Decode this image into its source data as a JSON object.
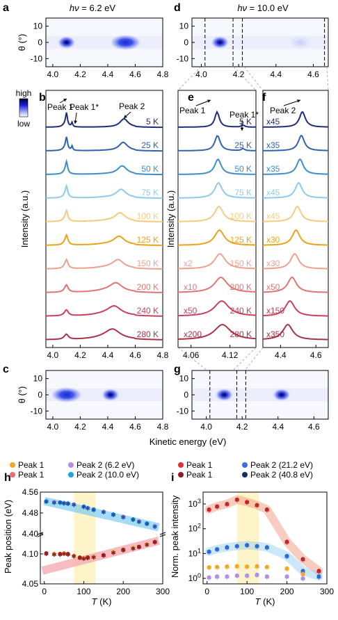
{
  "chart_data": [
    {
      "panel": "a",
      "type": "heatmap",
      "title": "hν = 6.2 eV",
      "ylabel": "θ (°)",
      "x_ticks": [
        "4.0",
        "4.2",
        "4.4",
        "4.6",
        "4.8"
      ],
      "y_ticks": [
        "10",
        "0",
        "-10"
      ],
      "xlim": [
        3.95,
        4.8
      ],
      "ylim": [
        -15,
        15
      ],
      "blobs": [
        {
          "x": 4.1,
          "y": 0,
          "strength": 0.9
        },
        {
          "x": 4.53,
          "y": 0,
          "strength": 0.35
        }
      ]
    },
    {
      "panel": "d",
      "type": "heatmap",
      "title": "hν = 10.0 eV",
      "x_ticks": [
        "4.0",
        "4.2",
        "4.4",
        "4.6"
      ],
      "y_ticks": [
        "10",
        "0",
        "-10"
      ],
      "xlim": [
        3.95,
        4.68
      ],
      "ylim": [
        -15,
        15
      ],
      "blobs": [
        {
          "x": 4.1,
          "y": 0,
          "strength": 1.0
        },
        {
          "x": 4.53,
          "y": 0,
          "strength": 0.05
        }
      ],
      "dashed_x": [
        4.02,
        4.17,
        4.22,
        4.66
      ]
    },
    {
      "panel": "b",
      "type": "line",
      "xlabel": "Kinetic energy (eV)",
      "ylabel": "Intensity (a.u.)",
      "x_ticks": [
        "4.0",
        "4.2",
        "4.4",
        "4.6",
        "4.8"
      ],
      "xlim": [
        3.95,
        4.8
      ],
      "legend": {
        "high": "high",
        "low": "low"
      },
      "annotations": [
        "Peak 1",
        "Peak 1*",
        "Peak 2"
      ],
      "series": [
        {
          "name": "5 K",
          "color": "#1d2d7a"
        },
        {
          "name": "25 K",
          "color": "#2f62ad"
        },
        {
          "name": "50 K",
          "color": "#3d8ccc"
        },
        {
          "name": "75 K",
          "color": "#8ccbec"
        },
        {
          "name": "100 K",
          "color": "#f2cc7b"
        },
        {
          "name": "125 K",
          "color": "#eaa318"
        },
        {
          "name": "150 K",
          "color": "#eba191"
        },
        {
          "name": "200 K",
          "color": "#e27470"
        },
        {
          "name": "240 K",
          "color": "#c6405a"
        },
        {
          "name": "280 K",
          "color": "#a83246"
        }
      ]
    },
    {
      "panel": "e",
      "type": "line",
      "x_ticks": [
        "4.06",
        "4.12"
      ],
      "xlim": [
        4.04,
        4.16
      ],
      "annotations": [
        "Peak 1",
        "Peak 1*"
      ],
      "scale_labels": [
        "",
        "",
        "",
        "",
        "",
        "",
        "x2",
        "x10",
        "x50",
        "x200"
      ]
    },
    {
      "panel": "f",
      "type": "line",
      "x_ticks": [
        "4.4",
        "4.6"
      ],
      "xlim": [
        4.3,
        4.67
      ],
      "annotations": [
        "Peak 2"
      ],
      "scale_labels": [
        "x45",
        "x35",
        "x35",
        "x45",
        "x45",
        "x30",
        "x30",
        "x50",
        "x150",
        "x350"
      ]
    },
    {
      "panel": "c",
      "type": "heatmap",
      "ylabel": "θ (°)",
      "x_ticks": [
        "4.0",
        "4.2",
        "4.4",
        "4.6",
        "4.8"
      ],
      "y_ticks": [
        "10",
        "0",
        "-10"
      ],
      "xlim": [
        3.95,
        4.8
      ],
      "ylim": [
        -15,
        15
      ],
      "blobs": [
        {
          "x": 4.1,
          "y": 0,
          "strength": 0.7
        },
        {
          "x": 4.42,
          "y": 0,
          "strength": 0.9
        }
      ]
    },
    {
      "panel": "g",
      "type": "heatmap",
      "x_ticks": [
        "4.0",
        "4.2",
        "4.4",
        "4.6"
      ],
      "y_ticks": [
        "10",
        "0",
        "-10"
      ],
      "xlim": [
        3.92,
        4.68
      ],
      "ylim": [
        -15,
        15
      ],
      "blobs": [
        {
          "x": 4.1,
          "y": 0,
          "strength": 1.0
        },
        {
          "x": 4.42,
          "y": 0,
          "strength": 0.85
        }
      ],
      "dashed_x": [
        4.02,
        4.17,
        4.22
      ]
    },
    {
      "panel": "h",
      "type": "scatter",
      "xlabel": "T (K)",
      "ylabel": "Peak position (eV)",
      "x_ticks": [
        "0",
        "100",
        "200",
        "300"
      ],
      "upper_y_ticks": [
        "4.56",
        "4.48",
        "4.40"
      ],
      "lower_y_ticks": [
        "4.10",
        "4.05"
      ],
      "xlim": [
        -10,
        300
      ],
      "series": [
        {
          "name": "Peak 1",
          "color": "#f5a623"
        },
        {
          "name": "Peak 2 (6.2 eV)",
          "color": "#b48ee6"
        },
        {
          "name": "Peak 1",
          "color": "#f26b6b"
        },
        {
          "name": "Peak 2 (10.0 eV)",
          "color": "#1aa3e8"
        }
      ],
      "peak2": {
        "x": [
          5,
          25,
          40,
          50,
          60,
          75,
          100,
          110,
          125,
          150,
          175,
          200,
          225,
          240,
          260,
          280
        ],
        "y": [
          4.525,
          4.522,
          4.521,
          4.519,
          4.517,
          4.513,
          4.505,
          4.5,
          4.494,
          4.485,
          4.475,
          4.466,
          4.456,
          4.448,
          4.44,
          4.43
        ]
      },
      "peak1": {
        "x": [
          5,
          25,
          40,
          50,
          60,
          75,
          90,
          100,
          110,
          125,
          150,
          175,
          200,
          225,
          240,
          260,
          280
        ],
        "y": [
          4.101,
          4.1,
          4.1,
          4.101,
          4.1,
          4.097,
          4.094,
          4.093,
          4.094,
          4.095,
          4.098,
          4.103,
          4.107,
          4.11,
          4.112,
          4.116,
          4.12
        ]
      }
    },
    {
      "panel": "i",
      "type": "scatter",
      "xlabel": "T (K)",
      "ylabel": "Norm. peak intensity",
      "x_ticks": [
        "0",
        "100",
        "200",
        "300"
      ],
      "y_ticks": [
        "10^3",
        "10^2",
        "10^1",
        "10^0"
      ],
      "xlim": [
        -10,
        300
      ],
      "ylim": [
        0.6,
        3000
      ],
      "scale": "log",
      "series": [
        {
          "name": "Peak 1",
          "color": "#e62e2e"
        },
        {
          "name": "Peak 2 (21.2 eV)",
          "color": "#3d6fdb"
        },
        {
          "name": "Peak 1",
          "color": "#8c1f1f"
        },
        {
          "name": "Peak 2 (40.8 eV)",
          "color": "#152a66"
        }
      ],
      "peak1_10eV": {
        "x": [
          5,
          25,
          50,
          75,
          100,
          125,
          150,
          200,
          240,
          280
        ],
        "y": [
          600,
          800,
          1000,
          1500,
          1200,
          900,
          600,
          30,
          6,
          2
        ]
      },
      "peak2_10eV": {
        "x": [
          5,
          25,
          50,
          75,
          100,
          125,
          150,
          200,
          240,
          280
        ],
        "y": [
          12,
          15,
          18,
          20,
          22,
          20,
          18,
          8,
          2,
          1.2
        ]
      },
      "peak1_62eV": {
        "x": [
          5,
          25,
          50,
          75,
          100,
          125,
          150,
          200,
          240
        ],
        "y": [
          2.8,
          2.9,
          3.0,
          3.1,
          3.0,
          3.1,
          2.9,
          2.5,
          1.5
        ]
      },
      "peak2_62eV": {
        "x": [
          5,
          25,
          50,
          75,
          100,
          125,
          150,
          200,
          240
        ],
        "y": [
          1.1,
          1.2,
          1.2,
          1.3,
          1.3,
          1.4,
          1.2,
          1.2,
          1.0
        ]
      }
    }
  ]
}
